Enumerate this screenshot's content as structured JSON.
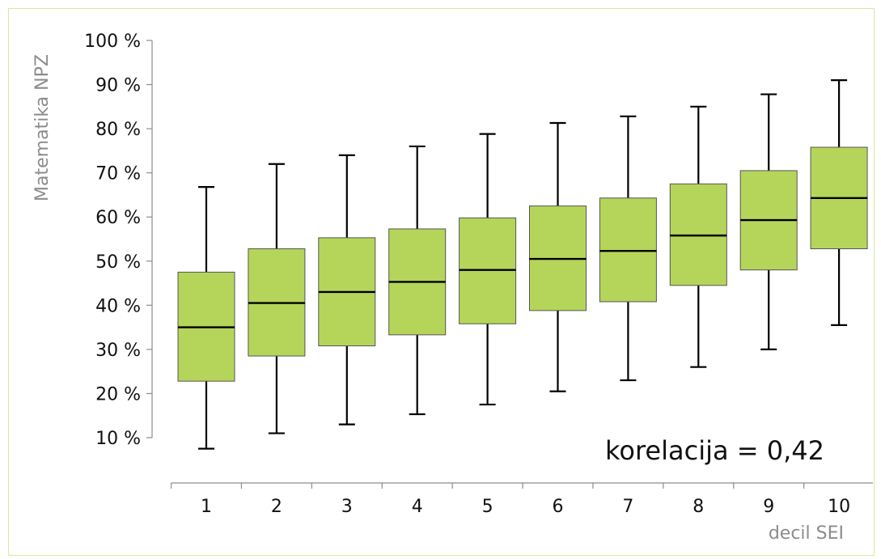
{
  "chart_data": {
    "type": "boxplot",
    "title": "",
    "xlabel": "decil SEI",
    "ylabel": "Matematika NPZ",
    "ylim": [
      10,
      100
    ],
    "y_ticks": [
      "10 %",
      "20 %",
      "30 %",
      "40 %",
      "50 %",
      "60 %",
      "70 %",
      "80 %",
      "90 %",
      "100 %"
    ],
    "y_tick_values": [
      10,
      20,
      30,
      40,
      50,
      60,
      70,
      80,
      90,
      100
    ],
    "categories": [
      "1",
      "2",
      "3",
      "4",
      "5",
      "6",
      "7",
      "8",
      "9",
      "10"
    ],
    "series": [
      {
        "min": [
          7.5,
          11,
          13,
          15.3,
          17.5,
          20.5,
          23,
          26,
          30,
          35.5
        ],
        "q1": [
          22.8,
          28.5,
          30.8,
          33.3,
          35.8,
          38.8,
          40.8,
          44.5,
          48,
          52.8
        ],
        "median": [
          35,
          40.5,
          43,
          45.3,
          48,
          50.5,
          52.3,
          55.8,
          59.3,
          64.3
        ],
        "q3": [
          47.5,
          52.8,
          55.3,
          57.3,
          59.8,
          62.5,
          64.3,
          67.5,
          70.5,
          75.8
        ],
        "max": [
          66.8,
          72,
          74,
          76,
          78.8,
          81.3,
          82.8,
          85,
          87.8,
          91
        ]
      }
    ],
    "annotation": "korelacija = 0,42",
    "grid": false,
    "box_color": "#b5d55a",
    "box_edge_color": "#555555",
    "line_color": "#000000"
  }
}
